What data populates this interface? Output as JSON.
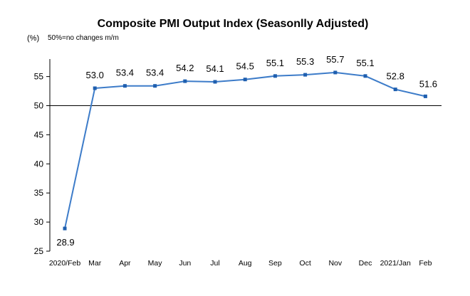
{
  "chart_data": {
    "type": "line",
    "title": "Composite PMI Output Index (Seasonlly Adjusted)",
    "unit_label": "(%)",
    "note": "50%=no changes  m/m",
    "xlabel": "",
    "ylabel": "",
    "categories": [
      "2020/Feb",
      "Mar",
      "Apr",
      "May",
      "Jun",
      "Jul",
      "Aug",
      "Sep",
      "Oct",
      "Nov",
      "Dec",
      "2021/Jan",
      "Feb"
    ],
    "values": [
      28.9,
      53.0,
      53.4,
      53.4,
      54.2,
      54.1,
      54.5,
      55.1,
      55.3,
      55.7,
      55.1,
      52.8,
      51.6
    ],
    "value_labels": [
      "28.9",
      "53.0",
      "53.4",
      "53.4",
      "54.2",
      "54.1",
      "54.5",
      "55.1",
      "55.3",
      "55.7",
      "55.1",
      "52.8",
      "51.6"
    ],
    "yticks": [
      "25",
      "30",
      "35",
      "40",
      "45",
      "50",
      "55"
    ],
    "ylim": [
      25,
      58
    ],
    "baseline": 50,
    "grid": false,
    "series_color": "#3D7CC9",
    "marker_color": "#1F5FAF"
  }
}
